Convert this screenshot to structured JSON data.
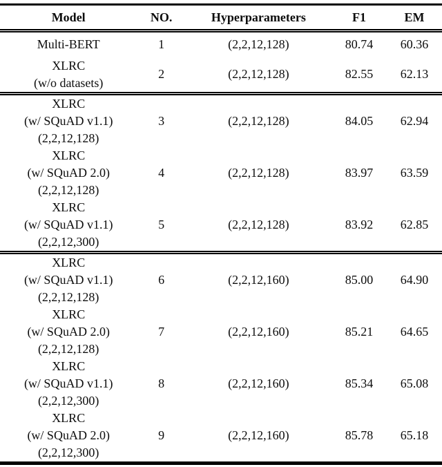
{
  "table": {
    "columns": [
      {
        "key": "model",
        "label": "Model"
      },
      {
        "key": "no",
        "label": "NO."
      },
      {
        "key": "hyperparameters",
        "label": "Hyperparameters"
      },
      {
        "key": "f1",
        "label": "F1"
      },
      {
        "key": "em",
        "label": "EM"
      }
    ],
    "groups": [
      {
        "rows": [
          {
            "model_lines": [
              "Multi-BERT"
            ],
            "no": "1",
            "hyperparameters": "(2,2,12,128)",
            "f1": "80.74",
            "em": "60.36"
          },
          {
            "model_lines": [
              "XLRC",
              "(w/o datasets)"
            ],
            "no": "2",
            "hyperparameters": "(2,2,12,128)",
            "f1": "82.55",
            "em": "62.13"
          }
        ]
      },
      {
        "rows": [
          {
            "model_lines": [
              "XLRC",
              "(w/ SQuAD v1.1)",
              "(2,2,12,128)"
            ],
            "no": "3",
            "hyperparameters": "(2,2,12,128)",
            "f1": "84.05",
            "em": "62.94"
          },
          {
            "model_lines": [
              "XLRC",
              "(w/ SQuAD 2.0)",
              "(2,2,12,128)"
            ],
            "no": "4",
            "hyperparameters": "(2,2,12,128)",
            "f1": "83.97",
            "em": "63.59"
          },
          {
            "model_lines": [
              "XLRC",
              "(w/ SQuAD v1.1)",
              "(2,2,12,300)"
            ],
            "no": "5",
            "hyperparameters": "(2,2,12,128)",
            "f1": "83.92",
            "em": "62.85"
          }
        ]
      },
      {
        "rows": [
          {
            "model_lines": [
              "XLRC",
              "(w/ SQuAD v1.1)",
              "(2,2,12,128)"
            ],
            "no": "6",
            "hyperparameters": "(2,2,12,160)",
            "f1": "85.00",
            "em": "64.90"
          },
          {
            "model_lines": [
              "XLRC",
              "(w/ SQuAD 2.0)",
              "(2,2,12,128)"
            ],
            "no": "7",
            "hyperparameters": "(2,2,12,160)",
            "f1": "85.21",
            "em": "64.65"
          },
          {
            "model_lines": [
              "XLRC",
              "(w/ SQuAD v1.1)",
              "(2,2,12,300)"
            ],
            "no": "8",
            "hyperparameters": "(2,2,12,160)",
            "f1": "85.34",
            "em": "65.08"
          },
          {
            "model_lines": [
              "XLRC",
              "(w/ SQuAD 2.0)",
              "(2,2,12,300)"
            ],
            "no": "9",
            "hyperparameters": "(2,2,12,160)",
            "f1": "85.78",
            "em": "65.18"
          }
        ]
      }
    ]
  }
}
